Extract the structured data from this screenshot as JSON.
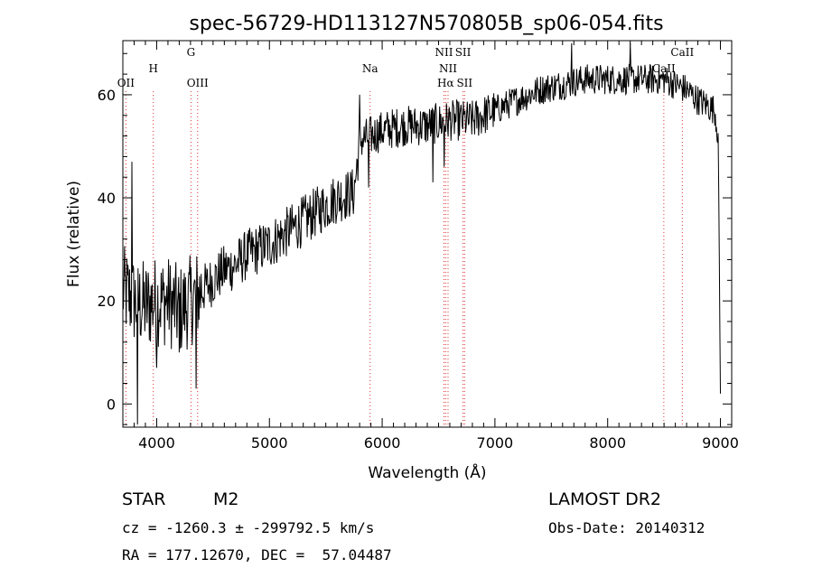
{
  "chart_data": {
    "type": "line",
    "title": "spec-56729-HD113127N570805B_sp06-054.fits",
    "xlabel": "Wavelength (Å)",
    "ylabel": "Flux (relative)",
    "xlim": [
      3700,
      9100
    ],
    "ylim": [
      -4.5,
      70.5
    ],
    "x_ticks": [
      4000,
      5000,
      6000,
      7000,
      8000,
      9000
    ],
    "x_tick_labels": [
      "4000",
      "5000",
      "6000",
      "7000",
      "8000",
      "9000"
    ],
    "y_ticks": [
      0,
      20,
      40,
      60
    ],
    "y_tick_labels": [
      "0",
      "20",
      "40",
      "60"
    ],
    "grid": false,
    "line_color": "#000000",
    "marker_color": "#e03030",
    "spectrum_continuum": {
      "x": [
        3700,
        3800,
        3900,
        4000,
        4100,
        4200,
        4300,
        4400,
        4500,
        4600,
        4700,
        4800,
        4900,
        5000,
        5200,
        5400,
        5600,
        5750,
        5800,
        6000,
        6200,
        6400,
        6600,
        6800,
        7000,
        7200,
        7400,
        7600,
        7800,
        8000,
        8200,
        8400,
        8500,
        8600,
        8700,
        8800,
        8880,
        8950,
        8980,
        9000
      ],
      "y": [
        22,
        20,
        19,
        20,
        20,
        18,
        20,
        22,
        24,
        26,
        27,
        29,
        30,
        31,
        34,
        37,
        40,
        41,
        51,
        53,
        54,
        54,
        55,
        55,
        57,
        59,
        61,
        62,
        63,
        63,
        63,
        63,
        63,
        62,
        61,
        59,
        58,
        57,
        52,
        2
      ]
    },
    "spectrum_features": [
      {
        "x": 3780,
        "y": 47
      },
      {
        "x": 3830,
        "y": -4
      },
      {
        "x": 4000,
        "y": 7
      },
      {
        "x": 4200,
        "y": 10
      },
      {
        "x": 4350,
        "y": 3
      },
      {
        "x": 5800,
        "y": 60
      },
      {
        "x": 5880,
        "y": 42
      },
      {
        "x": 6450,
        "y": 43
      },
      {
        "x": 6550,
        "y": 46
      },
      {
        "x": 7680,
        "y": 70
      },
      {
        "x": 8200,
        "y": 70
      }
    ],
    "line_markers": [
      {
        "label": "OII",
        "x": 3727,
        "row": 3
      },
      {
        "label": "H",
        "x": 3970,
        "row": 2
      },
      {
        "label": "G",
        "x": 4304,
        "row": 1
      },
      {
        "label": "OIII",
        "x": 4363,
        "row": 3
      },
      {
        "label": "Na",
        "x": 5893,
        "row": 2
      },
      {
        "label": "NII",
        "x": 6548,
        "row": 1
      },
      {
        "label": "NII",
        "x": 6584,
        "row": 2
      },
      {
        "label": "Hα",
        "x": 6563,
        "row": 3
      },
      {
        "label": "SII",
        "x": 6717,
        "row": 1
      },
      {
        "label": "SII",
        "x": 6731,
        "row": 3
      },
      {
        "label": "CaII",
        "x": 8498,
        "row": 2
      },
      {
        "label": "CaII",
        "x": 8662,
        "row": 1
      }
    ]
  },
  "info": {
    "object_class": "STAR",
    "subclass": "M2",
    "survey": "LAMOST DR2",
    "redshift_line": "cz = -1260.3 ± -299792.5 km/s",
    "obs_date_line": "Obs-Date: 20140312",
    "coords_line": "RA = 177.12670, DEC =  57.04487"
  }
}
